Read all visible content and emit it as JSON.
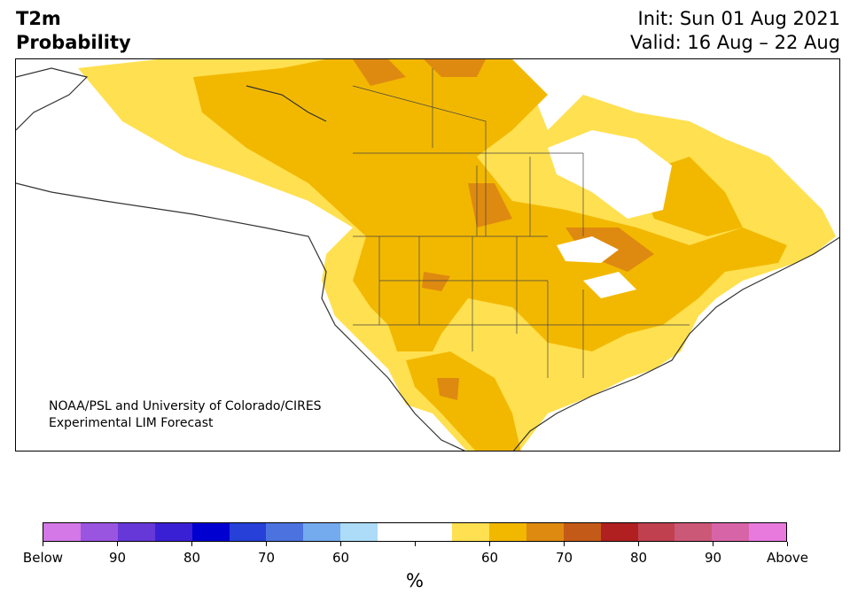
{
  "title": {
    "line1": "T2m",
    "line2": "Probability"
  },
  "init": {
    "line1": "Init: Sun 01 Aug 2021",
    "line2": "Valid: 16 Aug – 22 Aug"
  },
  "credit": {
    "line1": "NOAA/PSL and University of Colorado/CIRES",
    "line2": "Experimental LIM Forecast"
  },
  "colorbar": {
    "colors": [
      "#d478e8",
      "#9a55e0",
      "#6638d8",
      "#3a20d4",
      "#0000d0",
      "#2640d8",
      "#4c72e0",
      "#74aaee",
      "#acdcf8",
      "#ffffff",
      "#ffffff",
      "#ffe050",
      "#f2b800",
      "#de8a10",
      "#c45a18",
      "#b02020",
      "#c04050",
      "#cc5878",
      "#d864a8",
      "#e87ade"
    ],
    "tick_labels": [
      "Below",
      "90",
      "80",
      "70",
      "60",
      "",
      "60",
      "70",
      "80",
      "90",
      "Above"
    ],
    "unit": "%"
  },
  "map": {
    "land_colors": {
      "white": "#ffffff",
      "light": "#ffe050",
      "medium": "#f2b800",
      "dark": "#de8a10"
    }
  }
}
